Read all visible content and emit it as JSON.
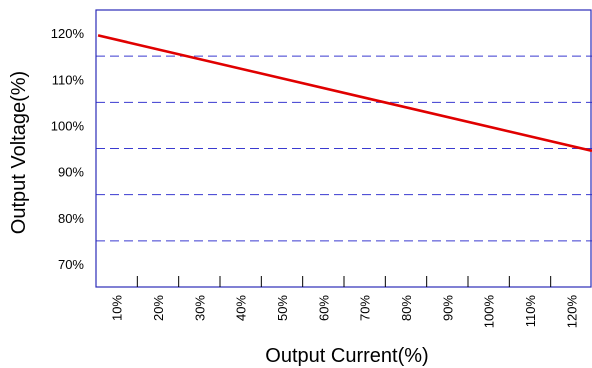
{
  "chart_data": {
    "type": "line",
    "xlabel": "Output  Current(%)",
    "ylabel": "Output Voltage(%)",
    "x_ticks": [
      "10%",
      "20%",
      "30%",
      "40%",
      "50%",
      "60%",
      "70%",
      "80%",
      "90%",
      "100%",
      "110%",
      "120%"
    ],
    "y_ticks": [
      "120%",
      "110%",
      "100%",
      "90%",
      "80%",
      "70%"
    ],
    "xlim": [
      0,
      12
    ],
    "ylim": [
      65,
      125
    ],
    "grid": {
      "type": "horizontal-dashed",
      "y_values": [
        115,
        105,
        95,
        85,
        75
      ]
    },
    "series": [
      {
        "x": [
          0.05,
          12.0
        ],
        "y": [
          119.5,
          94.5
        ],
        "color": "#e00000"
      }
    ],
    "colors": {
      "frame": "#2b2bb8",
      "grid": "#3a3ad0",
      "line": "#e00000"
    }
  }
}
